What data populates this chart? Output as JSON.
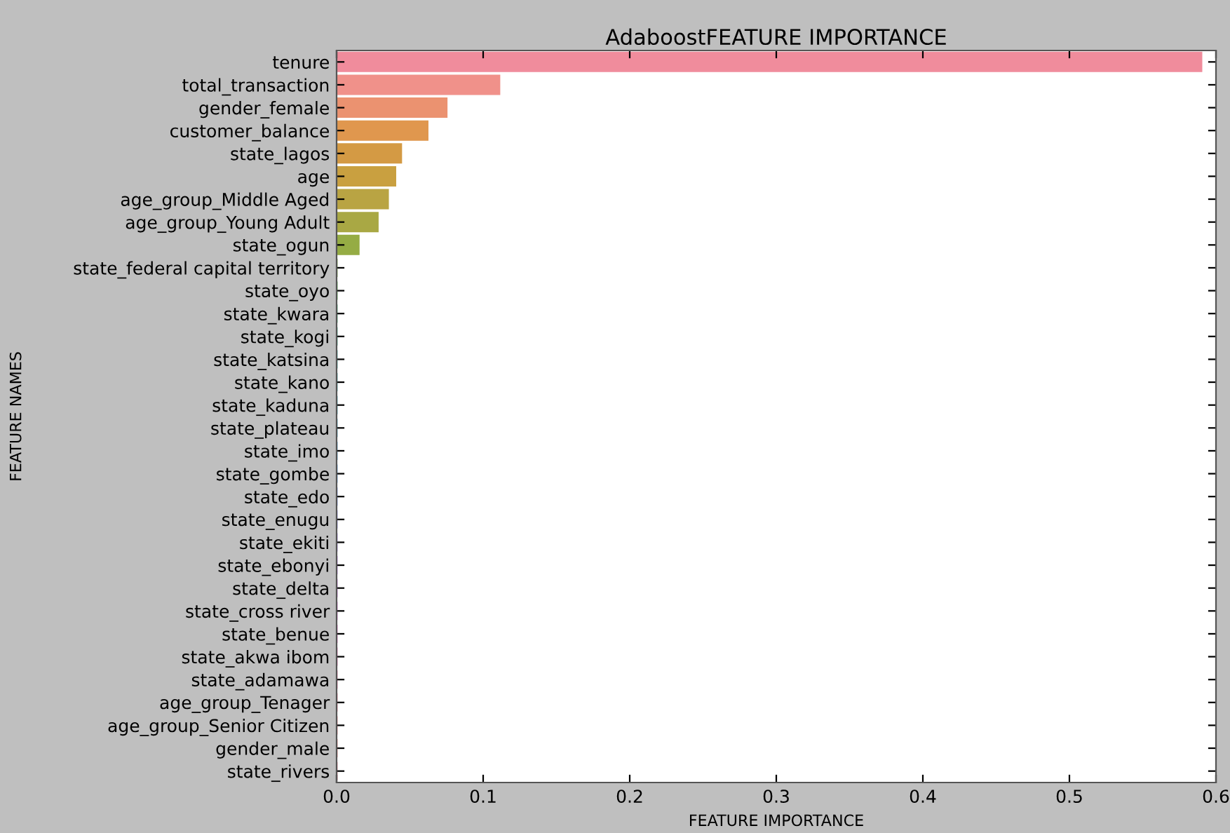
{
  "chart_data": {
    "type": "bar",
    "orientation": "horizontal",
    "title": "AdaboostFEATURE IMPORTANCE",
    "xlabel": "FEATURE IMPORTANCE",
    "ylabel": "FEATURE NAMES",
    "categories": [
      "tenure",
      "total_transaction",
      "gender_female",
      "customer_balance",
      "state_lagos",
      "age",
      "age_group_Middle Aged",
      "age_group_Young Adult",
      "state_ogun",
      "state_federal capital territory",
      "state_oyo",
      "state_kwara",
      "state_kogi",
      "state_katsina",
      "state_kano",
      "state_kaduna",
      "state_plateau",
      "state_imo",
      "state_gombe",
      "state_edo",
      "state_enugu",
      "state_ekiti",
      "state_ebonyi",
      "state_delta",
      "state_cross river",
      "state_benue",
      "state_akwa ibom",
      "state_adamawa",
      "age_group_Tenager",
      "age_group_Senior Citizen",
      "gender_male",
      "state_rivers"
    ],
    "values": [
      0.59,
      0.111,
      0.075,
      0.062,
      0.044,
      0.04,
      0.035,
      0.028,
      0.015,
      0,
      0,
      0,
      0,
      0,
      0,
      0,
      0,
      0,
      0,
      0,
      0,
      0,
      0,
      0,
      0,
      0,
      0,
      0,
      0,
      0,
      0,
      0
    ],
    "colors": [
      "#f08c9c",
      "#f0918a",
      "#eb9270",
      "#e0974e",
      "#d49a44",
      "#c9a040",
      "#b9a443",
      "#a9a844",
      "#95ac44",
      "#80b044",
      "#52b646",
      "#44b475",
      "#46b18e",
      "#47afa0",
      "#48adac",
      "#4aabb8",
      "#4ca9c5",
      "#50a6d6",
      "#5fa1e8",
      "#7e99f1",
      "#9b92f1",
      "#b08af1",
      "#c282ef",
      "#d47aeb",
      "#e274de",
      "#ec73cc",
      "#f078ba",
      "#f07eac",
      "#f08398",
      "#f0878c",
      "#f08a84",
      "#f08c9c"
    ],
    "xlim": [
      0,
      0.6
    ],
    "xticks": [
      {
        "value": 0,
        "label": "0.0"
      },
      {
        "value": 0.1,
        "label": "0.1"
      },
      {
        "value": 0.2,
        "label": "0.2"
      },
      {
        "value": 0.3,
        "label": "0.3"
      },
      {
        "value": 0.4,
        "label": "0.4"
      },
      {
        "value": 0.5,
        "label": "0.5"
      },
      {
        "value": 0.6,
        "label": "0.6"
      }
    ],
    "grid": false,
    "legend": false
  }
}
